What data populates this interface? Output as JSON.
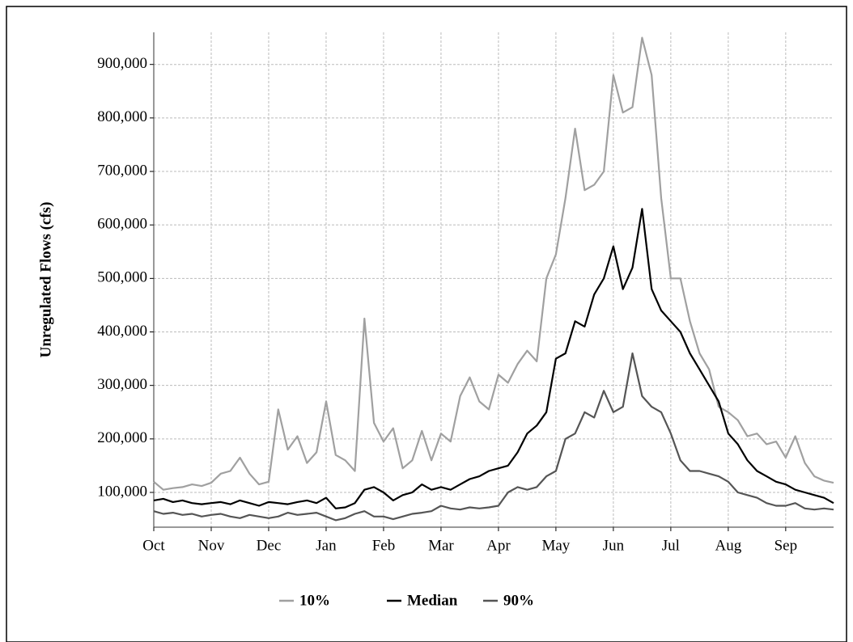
{
  "chart_data": {
    "type": "line",
    "ylabel": "Unregulated Flows (cfs)",
    "categories": [
      "Oct",
      null,
      null,
      null,
      null,
      null,
      "Nov",
      null,
      null,
      null,
      null,
      null,
      "Dec",
      null,
      null,
      null,
      null,
      null,
      "Jan",
      null,
      null,
      null,
      null,
      null,
      "Feb",
      null,
      null,
      null,
      null,
      null,
      "Mar",
      null,
      null,
      null,
      null,
      null,
      "Apr",
      null,
      null,
      null,
      null,
      null,
      "May",
      null,
      null,
      null,
      null,
      null,
      "Jun",
      null,
      null,
      null,
      null,
      null,
      "Jul",
      null,
      null,
      null,
      null,
      null,
      "Aug",
      null,
      null,
      null,
      null,
      null,
      "Sep",
      null,
      null,
      null,
      null,
      null
    ],
    "series": [
      {
        "name": "10%",
        "color": "#a0a0a0",
        "values": [
          120000,
          105000,
          108000,
          110000,
          115000,
          112000,
          118000,
          135000,
          140000,
          165000,
          135000,
          115000,
          120000,
          255000,
          180000,
          205000,
          155000,
          175000,
          270000,
          170000,
          160000,
          140000,
          425000,
          230000,
          195000,
          220000,
          145000,
          160000,
          215000,
          160000,
          210000,
          195000,
          280000,
          315000,
          270000,
          255000,
          320000,
          305000,
          340000,
          365000,
          345000,
          500000,
          545000,
          650000,
          780000,
          665000,
          675000,
          700000,
          880000,
          810000,
          820000,
          950000,
          880000,
          650000,
          500000,
          500000,
          420000,
          360000,
          330000,
          260000,
          250000,
          235000,
          205000,
          210000,
          190000,
          195000,
          165000,
          205000,
          155000,
          130000,
          122000,
          118000
        ]
      },
      {
        "name": "Median",
        "color": "#000000",
        "values": [
          85000,
          88000,
          82000,
          85000,
          80000,
          78000,
          80000,
          82000,
          78000,
          85000,
          80000,
          75000,
          82000,
          80000,
          78000,
          82000,
          85000,
          80000,
          90000,
          70000,
          72000,
          80000,
          105000,
          110000,
          100000,
          85000,
          95000,
          100000,
          115000,
          105000,
          110000,
          105000,
          115000,
          125000,
          130000,
          140000,
          145000,
          150000,
          175000,
          210000,
          225000,
          250000,
          350000,
          360000,
          420000,
          410000,
          470000,
          500000,
          560000,
          480000,
          520000,
          630000,
          480000,
          440000,
          420000,
          400000,
          360000,
          330000,
          300000,
          270000,
          210000,
          190000,
          160000,
          140000,
          130000,
          120000,
          115000,
          105000,
          100000,
          95000,
          90000,
          80000
        ]
      },
      {
        "name": "90%",
        "color": "#555555",
        "values": [
          65000,
          60000,
          62000,
          58000,
          60000,
          55000,
          58000,
          60000,
          55000,
          52000,
          58000,
          55000,
          52000,
          55000,
          62000,
          58000,
          60000,
          62000,
          55000,
          48000,
          52000,
          60000,
          65000,
          55000,
          55000,
          50000,
          55000,
          60000,
          62000,
          65000,
          75000,
          70000,
          68000,
          72000,
          70000,
          72000,
          75000,
          100000,
          110000,
          105000,
          110000,
          130000,
          140000,
          200000,
          210000,
          250000,
          240000,
          290000,
          250000,
          260000,
          360000,
          280000,
          260000,
          250000,
          210000,
          160000,
          140000,
          140000,
          135000,
          130000,
          120000,
          100000,
          95000,
          90000,
          80000,
          75000,
          75000,
          80000,
          70000,
          68000,
          70000,
          68000
        ]
      }
    ],
    "ylim": [
      35000,
      960000
    ],
    "yticks": [
      {
        "value": 100000,
        "label": "100,000"
      },
      {
        "value": 200000,
        "label": "200,000"
      },
      {
        "value": 300000,
        "label": "300,000"
      },
      {
        "value": 400000,
        "label": "400,000"
      },
      {
        "value": 500000,
        "label": "500,000"
      },
      {
        "value": 600000,
        "label": "600,000"
      },
      {
        "value": 700000,
        "label": "700,000"
      },
      {
        "value": 800000,
        "label": "800,000"
      },
      {
        "value": 900000,
        "label": "900,000"
      }
    ],
    "grid": true
  }
}
